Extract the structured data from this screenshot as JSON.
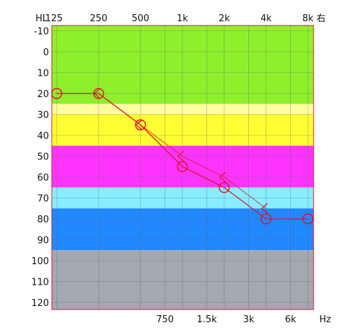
{
  "ear_label": "右",
  "chart_data": {
    "type": "line",
    "title": "",
    "x_scale": "log",
    "y_inverted": true,
    "y_unit_label": "HL",
    "x_unit_label": "Hz",
    "ylim": [
      -15,
      125
    ],
    "x_range_hz": [
      125,
      8000
    ],
    "top_ticks": [
      {
        "label": "125",
        "hz": 125
      },
      {
        "label": "250",
        "hz": 250
      },
      {
        "label": "500",
        "hz": 500
      },
      {
        "label": "1k",
        "hz": 1000
      },
      {
        "label": "2k",
        "hz": 2000
      },
      {
        "label": "4k",
        "hz": 4000
      },
      {
        "label": "8k",
        "hz": 8000
      }
    ],
    "bottom_ticks": [
      {
        "label": "750",
        "hz": 750
      },
      {
        "label": "1.5k",
        "hz": 1500
      },
      {
        "label": "3k",
        "hz": 3000
      },
      {
        "label": "6k",
        "hz": 6000
      }
    ],
    "y_ticks": [
      -10,
      0,
      10,
      20,
      30,
      40,
      50,
      60,
      70,
      80,
      90,
      100,
      110,
      120
    ],
    "bands": [
      {
        "from": -15,
        "to": 25,
        "color": "#8ef02b"
      },
      {
        "from": 25,
        "to": 30,
        "color": "#ffffa0"
      },
      {
        "from": 30,
        "to": 45,
        "color": "#ffff33"
      },
      {
        "from": 45,
        "to": 65,
        "color": "#ff33ff"
      },
      {
        "from": 65,
        "to": 75,
        "color": "#88eeff"
      },
      {
        "from": 75,
        "to": 95,
        "color": "#2288ff"
      },
      {
        "from": 95,
        "to": 125,
        "color": "#a4a8b0"
      }
    ],
    "series": [
      {
        "marker": "circle",
        "color": "#e0102a",
        "x": [
          125,
          250,
          500,
          1000,
          2000,
          4000,
          8000
        ],
        "y": [
          20,
          20,
          35,
          55,
          65,
          80,
          80
        ]
      },
      {
        "marker": "bracket",
        "color": "#e0102a",
        "x": [
          250,
          500,
          1000,
          2000,
          4000
        ],
        "y": [
          20,
          35,
          50,
          60,
          75
        ]
      }
    ]
  }
}
